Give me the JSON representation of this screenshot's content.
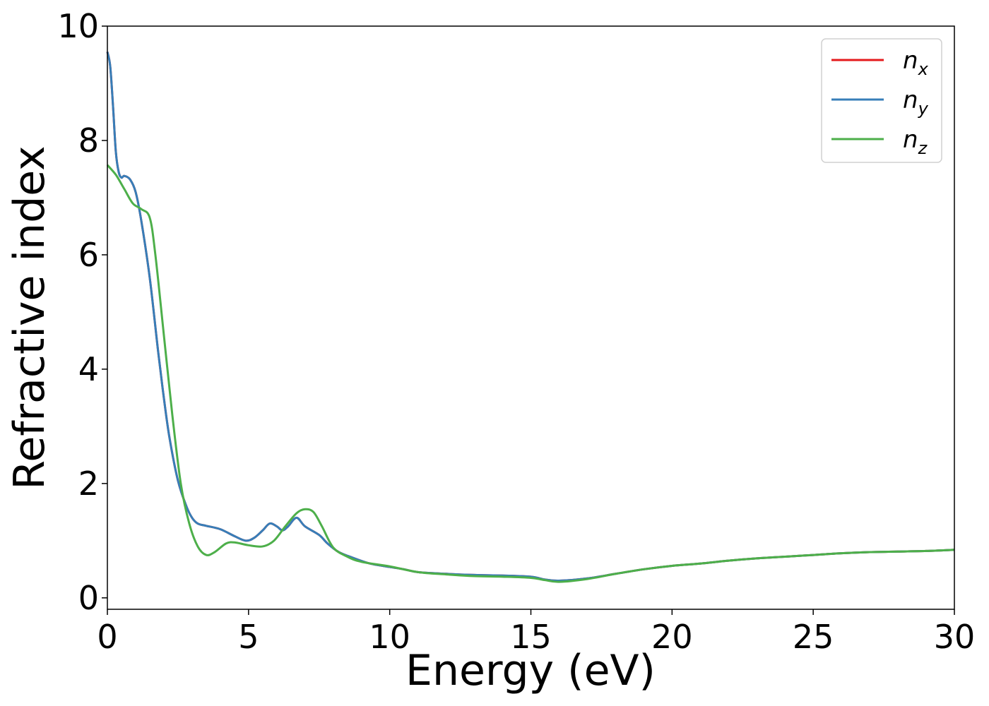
{
  "chart_data": {
    "type": "line",
    "title": "",
    "xlabel": "Energy (eV)",
    "ylabel": "Refractive index",
    "xlim": [
      0,
      30
    ],
    "ylim": [
      -0.2,
      10
    ],
    "xticks": [
      0,
      5,
      10,
      15,
      20,
      25,
      30
    ],
    "yticks": [
      0,
      2,
      4,
      6,
      8,
      10
    ],
    "xtick_labels": [
      "0",
      "5",
      "10",
      "15",
      "20",
      "25",
      "30"
    ],
    "ytick_labels": [
      "0",
      "2",
      "4",
      "6",
      "8",
      "10"
    ],
    "grid": false,
    "legend_position": "top-right",
    "series": [
      {
        "name": "n",
        "subscript": "x",
        "color": "#e41a1c",
        "x": [
          0,
          0.1,
          0.2,
          0.3,
          0.4,
          0.5,
          0.6,
          0.8,
          1.0,
          1.2,
          1.5,
          1.8,
          2.0,
          2.2,
          2.5,
          2.8,
          3.0,
          3.2,
          3.5,
          4.0,
          4.5,
          4.9,
          5.2,
          5.5,
          5.75,
          6.0,
          6.2,
          6.4,
          6.7,
          7.0,
          7.5,
          7.8,
          8.2,
          8.7,
          9.3,
          10.0,
          10.5,
          11.0,
          12.0,
          13.0,
          14.0,
          15.0,
          15.5,
          16.0,
          17.0,
          18.0,
          19.0,
          20.0,
          21.0,
          22.0,
          23.0,
          24.0,
          25.0,
          26.0,
          27.0,
          28.0,
          29.0,
          30.0
        ],
        "values": [
          9.55,
          9.3,
          8.6,
          7.8,
          7.45,
          7.35,
          7.38,
          7.32,
          7.1,
          6.6,
          5.6,
          4.3,
          3.5,
          2.8,
          2.05,
          1.6,
          1.4,
          1.3,
          1.26,
          1.2,
          1.08,
          1.0,
          1.05,
          1.18,
          1.3,
          1.25,
          1.18,
          1.25,
          1.4,
          1.25,
          1.1,
          0.95,
          0.8,
          0.7,
          0.6,
          0.54,
          0.5,
          0.45,
          0.42,
          0.4,
          0.39,
          0.37,
          0.32,
          0.3,
          0.34,
          0.42,
          0.5,
          0.56,
          0.6,
          0.65,
          0.69,
          0.72,
          0.75,
          0.78,
          0.8,
          0.81,
          0.82,
          0.84
        ]
      },
      {
        "name": "n",
        "subscript": "y",
        "color": "#377eb8",
        "x": [
          0,
          0.1,
          0.2,
          0.3,
          0.4,
          0.5,
          0.6,
          0.8,
          1.0,
          1.2,
          1.5,
          1.8,
          2.0,
          2.2,
          2.5,
          2.8,
          3.0,
          3.2,
          3.5,
          4.0,
          4.5,
          4.9,
          5.2,
          5.5,
          5.75,
          6.0,
          6.2,
          6.4,
          6.7,
          7.0,
          7.5,
          7.8,
          8.2,
          8.7,
          9.3,
          10.0,
          10.5,
          11.0,
          12.0,
          13.0,
          14.0,
          15.0,
          15.5,
          16.0,
          17.0,
          18.0,
          19.0,
          20.0,
          21.0,
          22.0,
          23.0,
          24.0,
          25.0,
          26.0,
          27.0,
          28.0,
          29.0,
          30.0
        ],
        "values": [
          9.55,
          9.3,
          8.6,
          7.8,
          7.45,
          7.35,
          7.38,
          7.32,
          7.1,
          6.6,
          5.6,
          4.3,
          3.5,
          2.8,
          2.05,
          1.6,
          1.4,
          1.3,
          1.26,
          1.2,
          1.08,
          1.0,
          1.05,
          1.18,
          1.3,
          1.25,
          1.18,
          1.25,
          1.4,
          1.25,
          1.1,
          0.95,
          0.8,
          0.7,
          0.6,
          0.54,
          0.5,
          0.45,
          0.42,
          0.4,
          0.39,
          0.37,
          0.32,
          0.3,
          0.34,
          0.42,
          0.5,
          0.56,
          0.6,
          0.65,
          0.69,
          0.72,
          0.75,
          0.78,
          0.8,
          0.81,
          0.82,
          0.84
        ]
      },
      {
        "name": "n",
        "subscript": "z",
        "color": "#4daf4a",
        "x": [
          0,
          0.3,
          0.6,
          0.9,
          1.2,
          1.5,
          1.7,
          2.0,
          2.3,
          2.6,
          2.9,
          3.2,
          3.5,
          3.8,
          4.2,
          4.5,
          5.0,
          5.5,
          5.9,
          6.3,
          6.7,
          7.0,
          7.3,
          7.6,
          8.0,
          8.5,
          9.0,
          10.0,
          11.0,
          12.0,
          13.0,
          14.0,
          15.0,
          15.5,
          16.0,
          17.0,
          18.0,
          19.0,
          20.0,
          21.0,
          22.0,
          23.0,
          24.0,
          25.0,
          26.0,
          27.0,
          28.0,
          29.0,
          30.0
        ],
        "values": [
          7.57,
          7.4,
          7.15,
          6.9,
          6.8,
          6.65,
          6.0,
          4.6,
          3.2,
          2.0,
          1.3,
          0.9,
          0.75,
          0.8,
          0.95,
          0.97,
          0.92,
          0.9,
          1.0,
          1.25,
          1.48,
          1.55,
          1.5,
          1.25,
          0.88,
          0.72,
          0.63,
          0.55,
          0.45,
          0.41,
          0.38,
          0.37,
          0.35,
          0.31,
          0.28,
          0.33,
          0.42,
          0.5,
          0.56,
          0.6,
          0.65,
          0.69,
          0.72,
          0.75,
          0.78,
          0.8,
          0.81,
          0.82,
          0.84
        ]
      }
    ]
  }
}
